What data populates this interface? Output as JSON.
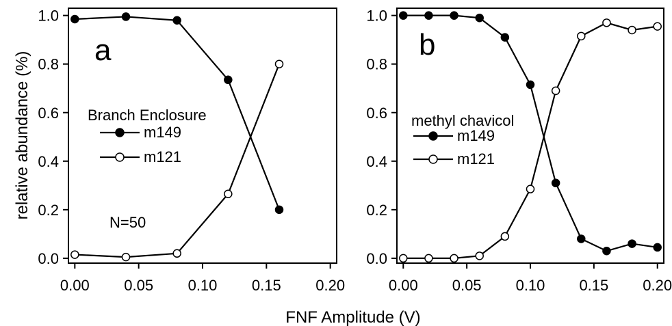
{
  "chart_data": [
    {
      "type": "line",
      "panel_label": "a",
      "xlabel": "FNF Amplitude (V)",
      "ylabel": "relative abundance (%)",
      "xlim": [
        -0.005,
        0.205
      ],
      "ylim": [
        -0.02,
        1.03
      ],
      "x_ticks": [
        0.0,
        0.05,
        0.1,
        0.15,
        0.2
      ],
      "x_tick_labels": [
        "0.00",
        "0.05",
        "0.10",
        "0.15",
        "0.20"
      ],
      "y_ticks": [
        0.0,
        0.2,
        0.4,
        0.6,
        0.8,
        1.0
      ],
      "y_tick_labels": [
        "0.0",
        "0.2",
        "0.4",
        "0.6",
        "0.8",
        "1.0"
      ],
      "grid": false,
      "legend_title": "Branch Enclosure",
      "legend_position": "left-middle",
      "annotation": "N=50",
      "series": [
        {
          "name": "m149",
          "marker": "filled-circle",
          "color": "#000000",
          "x": [
            0.0,
            0.04,
            0.08,
            0.12,
            0.16
          ],
          "y": [
            0.985,
            0.995,
            0.98,
            0.735,
            0.2
          ]
        },
        {
          "name": "m121",
          "marker": "open-circle",
          "color": "#000000",
          "x": [
            0.0,
            0.04,
            0.08,
            0.12,
            0.16
          ],
          "y": [
            0.015,
            0.005,
            0.02,
            0.265,
            0.8
          ]
        }
      ]
    },
    {
      "type": "line",
      "panel_label": "b",
      "xlabel": "FNF Amplitude (V)",
      "ylabel": "",
      "xlim": [
        -0.005,
        0.205
      ],
      "ylim": [
        -0.02,
        1.03
      ],
      "x_ticks": [
        0.0,
        0.05,
        0.1,
        0.15,
        0.2
      ],
      "x_tick_labels": [
        "0.00",
        "0.05",
        "0.10",
        "0.15",
        "0.20"
      ],
      "y_ticks": [
        0.0,
        0.2,
        0.4,
        0.6,
        0.8,
        1.0
      ],
      "y_tick_labels": [
        "0.0",
        "0.2",
        "0.4",
        "0.6",
        "0.8",
        "1.0"
      ],
      "grid": false,
      "legend_title": "methyl chavicol",
      "legend_position": "left-middle",
      "annotation": "",
      "series": [
        {
          "name": "m149",
          "marker": "filled-circle",
          "color": "#000000",
          "x": [
            0.0,
            0.02,
            0.04,
            0.06,
            0.08,
            0.1,
            0.12,
            0.14,
            0.16,
            0.18,
            0.2
          ],
          "y": [
            1.0,
            1.0,
            1.0,
            0.99,
            0.91,
            0.715,
            0.31,
            0.08,
            0.03,
            0.06,
            0.045
          ]
        },
        {
          "name": "m121",
          "marker": "open-circle",
          "color": "#000000",
          "x": [
            0.0,
            0.02,
            0.04,
            0.06,
            0.08,
            0.1,
            0.12,
            0.14,
            0.16,
            0.18,
            0.2
          ],
          "y": [
            0.0,
            0.0,
            0.0,
            0.01,
            0.09,
            0.285,
            0.69,
            0.915,
            0.97,
            0.94,
            0.955
          ]
        }
      ]
    }
  ]
}
